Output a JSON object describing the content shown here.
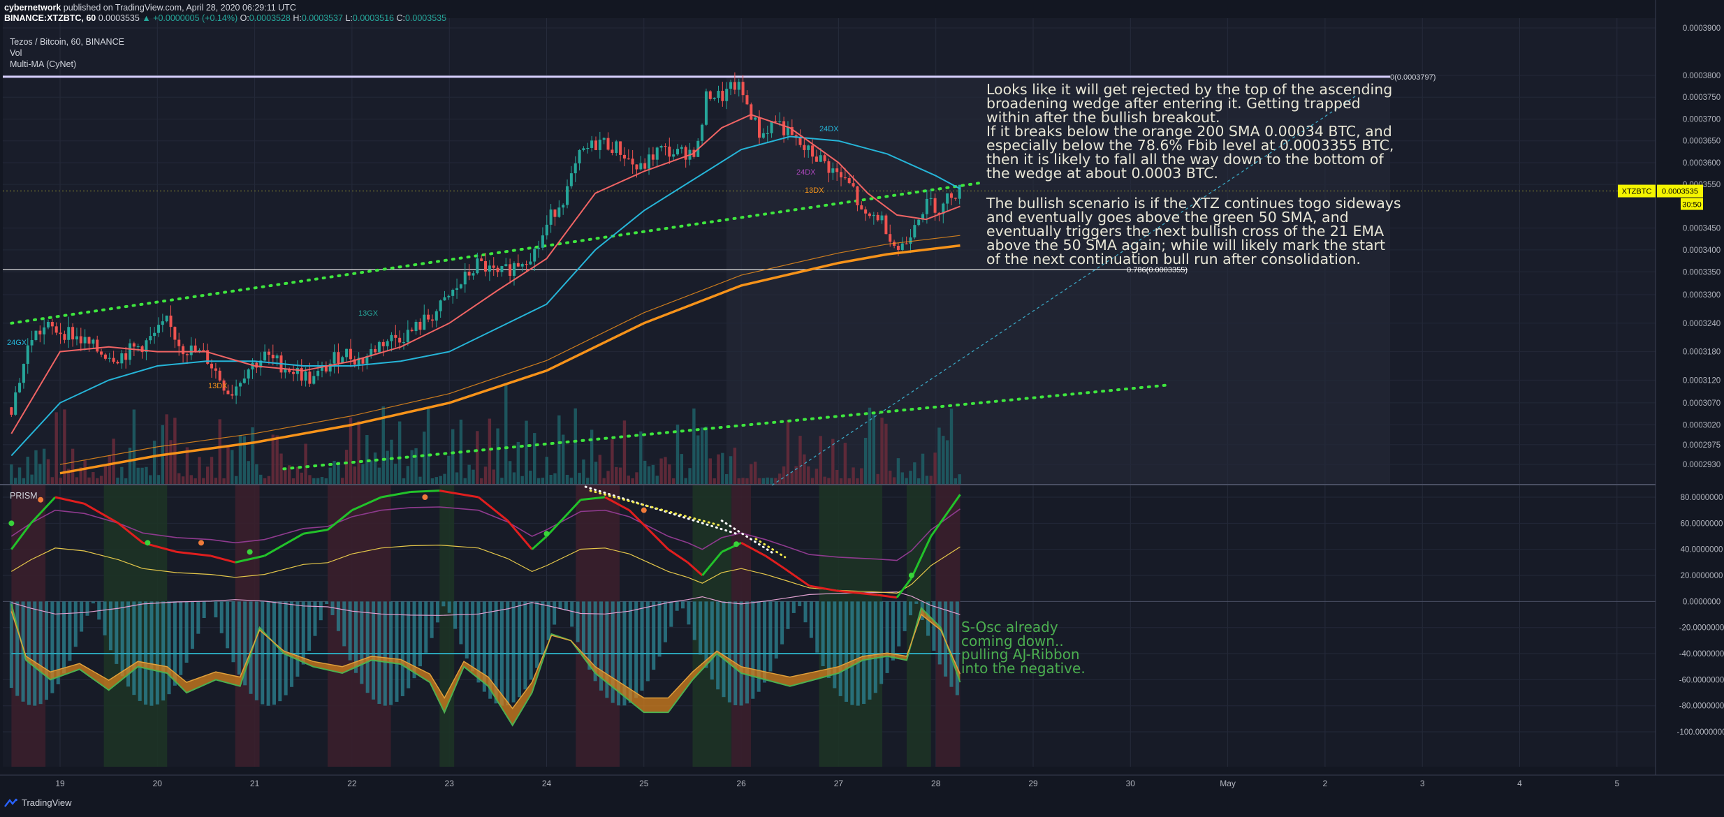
{
  "header": {
    "author": "cybernetwork",
    "published_text": "published on TradingView.com, April 28, 2020 06:29:11 UTC",
    "symbol_line": "BINANCE:XTZBTC, 60",
    "last": "0.0003535",
    "change": "▲ +0.0000005 (+0.14%)",
    "o_label": "O:",
    "o": "0.0003528",
    "h_label": "H:",
    "h": "0.0003537",
    "l_label": "L:",
    "l": "0.0003516",
    "c_label": "C:",
    "c": "0.0003535"
  },
  "legend": {
    "title": "Tezos / Bitcoin, 60, BINANCE",
    "vol": "Vol",
    "ma": "Multi-MA (CyNet)",
    "osc": "PRISM"
  },
  "annotations": {
    "main": "Looks like it will get rejected by the top of the ascending\nbroadening wedge after entering it. Getting trapped\nwithin after the bullish breakout.\nIf it breaks below the orange 200 SMA 0.00034 BTC, and\nespecially below the 78.6% Fbib level at 0.0003355 BTC,\nthen it is likely to fall all the way down to the bottom of\nthe wedge at about 0.0003 BTC.",
    "bullish": "The bullish scenario is if the XTZ continues togo sideways\nand eventually goes above the green 50 SMA, and\neventually triggers the next bullish cross of the 21 EMA\nabove the 50 SMA again; while will likely mark the start\nof the next continuation bull run after consolidation.",
    "osc": "S-Osc already\ncoming down..\npulling AJ-Ribbon\ninto the negative."
  },
  "fib_labels": {
    "top": "0(0.0003797)",
    "f786": "0.786(0.0003355)"
  },
  "price_badge": {
    "symbol": "XTZBTC",
    "price": "0.0003535",
    "countdown": "30:50"
  },
  "ma_labels": [
    "24GX",
    "13GX",
    "13DX",
    "24DX",
    "13DX",
    "24DX"
  ],
  "footer": {
    "brand": "TradingView"
  },
  "colors": {
    "bg": "#131722",
    "up": "#26a69a",
    "down": "#ef5350",
    "ema21": "#f06464",
    "sma50": "#26b5d8",
    "sma200": "#f7931a",
    "wedge": "#3ee63e",
    "badge": "#f5f500"
  },
  "chart_data": [
    {
      "type": "candlestick",
      "title": "Tezos / Bitcoin, 60, BINANCE",
      "x_ticks": [
        "19",
        "20",
        "21",
        "22",
        "23",
        "24",
        "25",
        "26",
        "27",
        "28",
        "29",
        "30",
        "May",
        "2",
        "3",
        "4",
        "5"
      ],
      "y_ticks": [
        "0.0003900",
        "0.0003800",
        "0.0003750",
        "0.0003700",
        "0.0003650",
        "0.0003600",
        "0.0003550",
        "0.0003450",
        "0.0003400",
        "0.0003350",
        "0.0003300",
        "0.0003240",
        "0.0003180",
        "0.0003120",
        "0.0003070",
        "0.0003020",
        "0.0002975",
        "0.0002930"
      ],
      "close_path": [
        {
          "x": 18.5,
          "y": 0.000306
        },
        {
          "x": 18.7,
          "y": 0.000321
        },
        {
          "x": 18.85,
          "y": 0.000323
        },
        {
          "x": 19.1,
          "y": 0.000322
        },
        {
          "x": 19.4,
          "y": 0.000318
        },
        {
          "x": 19.6,
          "y": 0.000317
        },
        {
          "x": 19.9,
          "y": 0.00032
        },
        {
          "x": 20.1,
          "y": 0.000324
        },
        {
          "x": 20.25,
          "y": 0.000319
        },
        {
          "x": 20.5,
          "y": 0.000317
        },
        {
          "x": 20.75,
          "y": 0.000309
        },
        {
          "x": 20.9,
          "y": 0.000314
        },
        {
          "x": 21.1,
          "y": 0.000317
        },
        {
          "x": 21.4,
          "y": 0.000314
        },
        {
          "x": 21.6,
          "y": 0.000312
        },
        {
          "x": 21.9,
          "y": 0.000318
        },
        {
          "x": 22.1,
          "y": 0.000316
        },
        {
          "x": 22.3,
          "y": 0.00032
        },
        {
          "x": 22.6,
          "y": 0.000322
        },
        {
          "x": 22.9,
          "y": 0.000327
        },
        {
          "x": 23.1,
          "y": 0.000332
        },
        {
          "x": 23.3,
          "y": 0.000337
        },
        {
          "x": 23.5,
          "y": 0.000334
        },
        {
          "x": 23.7,
          "y": 0.000337
        },
        {
          "x": 23.9,
          "y": 0.00034
        },
        {
          "x": 24.05,
          "y": 0.000348
        },
        {
          "x": 24.2,
          "y": 0.000353
        },
        {
          "x": 24.35,
          "y": 0.000362
        },
        {
          "x": 24.55,
          "y": 0.000365
        },
        {
          "x": 24.75,
          "y": 0.000363
        },
        {
          "x": 24.95,
          "y": 0.000358
        },
        {
          "x": 25.15,
          "y": 0.000363
        },
        {
          "x": 25.35,
          "y": 0.000362
        },
        {
          "x": 25.55,
          "y": 0.000363
        },
        {
          "x": 25.65,
          "y": 0.000376
        },
        {
          "x": 25.8,
          "y": 0.000375
        },
        {
          "x": 25.95,
          "y": 0.000378
        },
        {
          "x": 26.05,
          "y": 0.000374
        },
        {
          "x": 26.2,
          "y": 0.000366
        },
        {
          "x": 26.35,
          "y": 0.00037
        },
        {
          "x": 26.5,
          "y": 0.000366
        },
        {
          "x": 26.65,
          "y": 0.000363
        },
        {
          "x": 26.8,
          "y": 0.000361
        },
        {
          "x": 27.0,
          "y": 0.000357
        },
        {
          "x": 27.15,
          "y": 0.000354
        },
        {
          "x": 27.25,
          "y": 0.000347
        },
        {
          "x": 27.4,
          "y": 0.000348
        },
        {
          "x": 27.5,
          "y": 0.000345
        },
        {
          "x": 27.6,
          "y": 0.00034
        },
        {
          "x": 27.7,
          "y": 0.000342
        },
        {
          "x": 27.8,
          "y": 0.000348
        },
        {
          "x": 27.95,
          "y": 0.000351
        },
        {
          "x": 28.05,
          "y": 0.000349
        },
        {
          "x": 28.15,
          "y": 0.000353
        },
        {
          "x": 28.25,
          "y": 0.0003535
        }
      ],
      "ema21": [
        {
          "x": 18.5,
          "y": 0.0003
        },
        {
          "x": 19.0,
          "y": 0.000318
        },
        {
          "x": 19.5,
          "y": 0.000319
        },
        {
          "x": 20.0,
          "y": 0.000318
        },
        {
          "x": 20.5,
          "y": 0.000318
        },
        {
          "x": 21.0,
          "y": 0.000315
        },
        {
          "x": 21.5,
          "y": 0.000314
        },
        {
          "x": 22.0,
          "y": 0.000316
        },
        {
          "x": 22.5,
          "y": 0.000319
        },
        {
          "x": 23.0,
          "y": 0.000324
        },
        {
          "x": 23.5,
          "y": 0.000331
        },
        {
          "x": 24.0,
          "y": 0.000338
        },
        {
          "x": 24.5,
          "y": 0.000353
        },
        {
          "x": 25.0,
          "y": 0.000358
        },
        {
          "x": 25.5,
          "y": 0.000362
        },
        {
          "x": 25.8,
          "y": 0.000368
        },
        {
          "x": 26.1,
          "y": 0.000371
        },
        {
          "x": 26.5,
          "y": 0.000368
        },
        {
          "x": 27.0,
          "y": 0.00036
        },
        {
          "x": 27.3,
          "y": 0.000353
        },
        {
          "x": 27.6,
          "y": 0.000348
        },
        {
          "x": 27.9,
          "y": 0.000347
        },
        {
          "x": 28.25,
          "y": 0.00035
        }
      ],
      "sma50": [
        {
          "x": 18.5,
          "y": 0.000295
        },
        {
          "x": 19.0,
          "y": 0.000307
        },
        {
          "x": 19.5,
          "y": 0.000312
        },
        {
          "x": 20.0,
          "y": 0.000315
        },
        {
          "x": 20.5,
          "y": 0.000316
        },
        {
          "x": 21.0,
          "y": 0.000316
        },
        {
          "x": 21.5,
          "y": 0.000315
        },
        {
          "x": 22.0,
          "y": 0.000315
        },
        {
          "x": 22.5,
          "y": 0.000316
        },
        {
          "x": 23.0,
          "y": 0.000318
        },
        {
          "x": 23.5,
          "y": 0.000323
        },
        {
          "x": 24.0,
          "y": 0.000328
        },
        {
          "x": 24.5,
          "y": 0.00034
        },
        {
          "x": 25.0,
          "y": 0.000349
        },
        {
          "x": 25.5,
          "y": 0.000356
        },
        {
          "x": 26.0,
          "y": 0.000363
        },
        {
          "x": 26.5,
          "y": 0.000366
        },
        {
          "x": 27.0,
          "y": 0.000365
        },
        {
          "x": 27.5,
          "y": 0.000362
        },
        {
          "x": 28.0,
          "y": 0.000357
        },
        {
          "x": 28.25,
          "y": 0.000354
        }
      ],
      "sma200": [
        {
          "x": 19.0,
          "y": 0.000291
        },
        {
          "x": 20.0,
          "y": 0.000295
        },
        {
          "x": 21.0,
          "y": 0.000298
        },
        {
          "x": 22.0,
          "y": 0.000302
        },
        {
          "x": 23.0,
          "y": 0.000307
        },
        {
          "x": 24.0,
          "y": 0.000314
        },
        {
          "x": 25.0,
          "y": 0.000324
        },
        {
          "x": 26.0,
          "y": 0.000332
        },
        {
          "x": 27.0,
          "y": 0.000337
        },
        {
          "x": 27.5,
          "y": 0.000339
        },
        {
          "x": 28.25,
          "y": 0.000341
        }
      ],
      "wedge_top": [
        {
          "x": 18.5,
          "y": 0.000324
        },
        {
          "x": 28.5,
          "y": 0.0003555
        }
      ],
      "wedge_bottom": [
        {
          "x": 21.3,
          "y": 0.000292
        },
        {
          "x": 30.4,
          "y": 0.000311
        }
      ],
      "fib_levels": [
        {
          "label": "0",
          "y": 0.0003797
        },
        {
          "label": "0.786",
          "y": 0.0003355
        }
      ],
      "last_price": 0.0003535
    },
    {
      "type": "line",
      "title": "PRISM",
      "y_ticks": [
        "80.0000000",
        "60.0000000",
        "40.0000000",
        "20.0000000",
        "0.0000000",
        "-20.0000000",
        "-40.0000000",
        "-60.0000000",
        "-80.0000000",
        "-100.0000000"
      ],
      "ylim": [
        -106,
        88
      ],
      "stoch_rsi": [
        {
          "x": 18.5,
          "y": 40
        },
        {
          "x": 18.7,
          "y": 60
        },
        {
          "x": 18.95,
          "y": 80
        },
        {
          "x": 19.25,
          "y": 75
        },
        {
          "x": 19.6,
          "y": 60
        },
        {
          "x": 19.85,
          "y": 45
        },
        {
          "x": 20.2,
          "y": 38
        },
        {
          "x": 20.55,
          "y": 35
        },
        {
          "x": 20.8,
          "y": 30
        },
        {
          "x": 21.1,
          "y": 35
        },
        {
          "x": 21.5,
          "y": 52
        },
        {
          "x": 21.75,
          "y": 55
        },
        {
          "x": 22.0,
          "y": 70
        },
        {
          "x": 22.3,
          "y": 80
        },
        {
          "x": 22.6,
          "y": 84
        },
        {
          "x": 22.9,
          "y": 85
        },
        {
          "x": 23.3,
          "y": 80
        },
        {
          "x": 23.6,
          "y": 62
        },
        {
          "x": 23.85,
          "y": 40
        },
        {
          "x": 24.0,
          "y": 50
        },
        {
          "x": 24.35,
          "y": 78
        },
        {
          "x": 24.6,
          "y": 80
        },
        {
          "x": 24.85,
          "y": 70
        },
        {
          "x": 25.05,
          "y": 55
        },
        {
          "x": 25.25,
          "y": 40
        },
        {
          "x": 25.45,
          "y": 30
        },
        {
          "x": 25.6,
          "y": 20
        },
        {
          "x": 25.8,
          "y": 38
        },
        {
          "x": 26.0,
          "y": 45
        },
        {
          "x": 26.25,
          "y": 35
        },
        {
          "x": 26.45,
          "y": 25
        },
        {
          "x": 26.7,
          "y": 12
        },
        {
          "x": 27.0,
          "y": 8
        },
        {
          "x": 27.4,
          "y": 5
        },
        {
          "x": 27.6,
          "y": 3
        },
        {
          "x": 27.75,
          "y": 18
        },
        {
          "x": 27.95,
          "y": 50
        },
        {
          "x": 28.25,
          "y": 82
        }
      ],
      "s_osc": [
        {
          "x": 18.5,
          "y": -2
        },
        {
          "x": 18.65,
          "y": -45
        },
        {
          "x": 18.9,
          "y": -60
        },
        {
          "x": 19.2,
          "y": -52
        },
        {
          "x": 19.5,
          "y": -68
        },
        {
          "x": 19.8,
          "y": -50
        },
        {
          "x": 20.1,
          "y": -55
        },
        {
          "x": 20.3,
          "y": -70
        },
        {
          "x": 20.6,
          "y": -60
        },
        {
          "x": 20.85,
          "y": -65
        },
        {
          "x": 21.05,
          "y": -20
        },
        {
          "x": 21.3,
          "y": -40
        },
        {
          "x": 21.6,
          "y": -50
        },
        {
          "x": 21.9,
          "y": -55
        },
        {
          "x": 22.2,
          "y": -45
        },
        {
          "x": 22.5,
          "y": -48
        },
        {
          "x": 22.8,
          "y": -62
        },
        {
          "x": 22.95,
          "y": -85
        },
        {
          "x": 23.15,
          "y": -50
        },
        {
          "x": 23.4,
          "y": -65
        },
        {
          "x": 23.65,
          "y": -95
        },
        {
          "x": 23.85,
          "y": -70
        },
        {
          "x": 24.05,
          "y": -25
        },
        {
          "x": 24.25,
          "y": -30
        },
        {
          "x": 24.5,
          "y": -55
        },
        {
          "x": 24.75,
          "y": -70
        },
        {
          "x": 25.0,
          "y": -85
        },
        {
          "x": 25.25,
          "y": -85
        },
        {
          "x": 25.5,
          "y": -60
        },
        {
          "x": 25.75,
          "y": -40
        },
        {
          "x": 26.0,
          "y": -55
        },
        {
          "x": 26.25,
          "y": -60
        },
        {
          "x": 26.5,
          "y": -65
        },
        {
          "x": 26.75,
          "y": -60
        },
        {
          "x": 27.0,
          "y": -55
        },
        {
          "x": 27.25,
          "y": -45
        },
        {
          "x": 27.5,
          "y": -42
        },
        {
          "x": 27.7,
          "y": -45
        },
        {
          "x": 27.85,
          "y": -5
        },
        {
          "x": 28.05,
          "y": -20
        },
        {
          "x": 28.25,
          "y": -62
        }
      ]
    }
  ]
}
